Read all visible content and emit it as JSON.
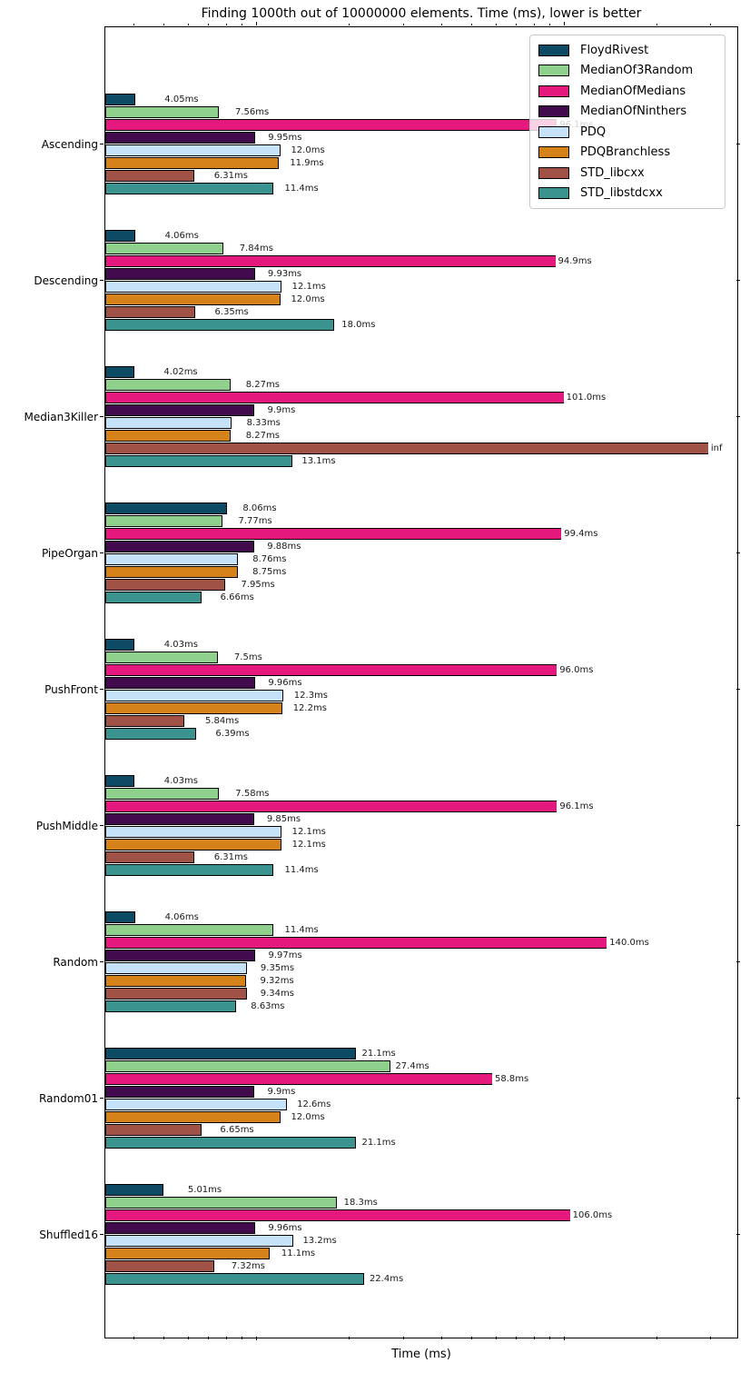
{
  "title": "Finding 1000th out of 10000000 elements. Time (ms), lower is better",
  "xlabel": "Time (ms)",
  "chart_data": {
    "type": "bar",
    "orientation": "horizontal",
    "x_scale": "log",
    "x_range": [
      3.24,
      372
    ],
    "x_ticks_minor": [
      4,
      5,
      6,
      7,
      8,
      9,
      20,
      30,
      40,
      50,
      60,
      70,
      80,
      90,
      200,
      300
    ],
    "x_ticks_major": [
      10,
      100
    ],
    "grid": false,
    "legend_position": "upper-right",
    "inf_plot_value": 300,
    "categories": [
      "Ascending",
      "Descending",
      "Median3Killer",
      "PipeOrgan",
      "PushFront",
      "PushMiddle",
      "Random",
      "Random01",
      "Shuffled16"
    ],
    "series": [
      {
        "name": "FloydRivest",
        "color": "#0d4a63",
        "values": [
          4.05,
          4.06,
          4.02,
          8.06,
          4.03,
          4.03,
          4.06,
          21.1,
          5.01
        ],
        "labels": [
          "4.05ms",
          "4.06ms",
          "4.02ms",
          "8.06ms",
          "4.03ms",
          "4.03ms",
          "4.06ms",
          "21.1ms",
          "5.01ms"
        ]
      },
      {
        "name": "MedianOf3Random",
        "color": "#8fd08c",
        "values": [
          7.56,
          7.84,
          8.27,
          7.77,
          7.5,
          7.58,
          11.4,
          27.4,
          18.3
        ],
        "labels": [
          "7.56ms",
          "7.84ms",
          "8.27ms",
          "7.77ms",
          "7.5ms",
          "7.58ms",
          "11.4ms",
          "27.4ms",
          "18.3ms"
        ]
      },
      {
        "name": "MedianOfMedians",
        "color": "#e5197d",
        "values": [
          96.1,
          94.9,
          101.0,
          99.4,
          96.0,
          96.1,
          140.0,
          58.8,
          106.0
        ],
        "labels": [
          "96.1ms",
          "94.9ms",
          "101.0ms",
          "99.4ms",
          "96.0ms",
          "96.1ms",
          "140.0ms",
          "58.8ms",
          "106.0ms"
        ]
      },
      {
        "name": "MedianOfNinthers",
        "color": "#410b4d",
        "values": [
          9.95,
          9.93,
          9.9,
          9.88,
          9.96,
          9.85,
          9.97,
          9.9,
          9.96
        ],
        "labels": [
          "9.95ms",
          "9.93ms",
          "9.9ms",
          "9.88ms",
          "9.96ms",
          "9.85ms",
          "9.97ms",
          "9.9ms",
          "9.96ms"
        ]
      },
      {
        "name": "PDQ",
        "color": "#c6e2f8",
        "values": [
          12.0,
          12.1,
          8.33,
          8.76,
          12.3,
          12.1,
          9.35,
          12.6,
          13.2
        ],
        "labels": [
          "12.0ms",
          "12.1ms",
          "8.33ms",
          "8.76ms",
          "12.3ms",
          "12.1ms",
          "9.35ms",
          "12.6ms",
          "13.2ms"
        ]
      },
      {
        "name": "PDQBranchless",
        "color": "#d5821a",
        "values": [
          11.9,
          12.0,
          8.27,
          8.75,
          12.2,
          12.1,
          9.32,
          12.0,
          11.1
        ],
        "labels": [
          "11.9ms",
          "12.0ms",
          "8.27ms",
          "8.75ms",
          "12.2ms",
          "12.1ms",
          "9.32ms",
          "12.0ms",
          "11.1ms"
        ]
      },
      {
        "name": "STD_libcxx",
        "color": "#a05246",
        "values": [
          6.31,
          6.35,
          "inf",
          7.95,
          5.84,
          6.31,
          9.34,
          6.65,
          7.32
        ],
        "labels": [
          "6.31ms",
          "6.35ms",
          "inf",
          "7.95ms",
          "5.84ms",
          "6.31ms",
          "9.34ms",
          "6.65ms",
          "7.32ms"
        ]
      },
      {
        "name": "STD_libstdcxx",
        "color": "#3a938e",
        "values": [
          11.4,
          18.0,
          13.1,
          6.66,
          6.39,
          11.4,
          8.63,
          21.1,
          22.4
        ],
        "labels": [
          "11.4ms",
          "18.0ms",
          "13.1ms",
          "6.66ms",
          "6.39ms",
          "11.4ms",
          "8.63ms",
          "21.1ms",
          "22.4ms"
        ]
      }
    ]
  }
}
